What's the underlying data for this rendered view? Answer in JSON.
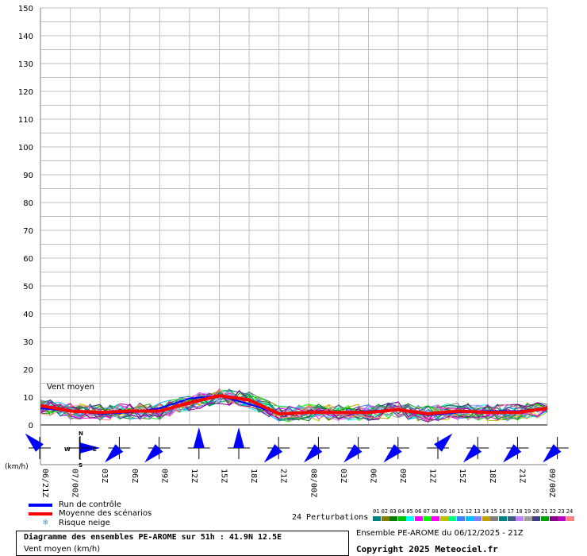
{
  "chart_data": {
    "type": "line",
    "annotation": "Vent moyen",
    "y_unit_label": "(km/h)",
    "ylim": [
      0,
      150
    ],
    "yticks": [
      0,
      10,
      20,
      30,
      40,
      50,
      60,
      70,
      80,
      90,
      100,
      110,
      120,
      130,
      140,
      150
    ],
    "grid": true,
    "x": [
      "06/21Z",
      "07/00Z",
      "03Z",
      "06Z",
      "09Z",
      "12Z",
      "15Z",
      "18Z",
      "21Z",
      "08/00Z",
      "03Z",
      "06Z",
      "09Z",
      "12Z",
      "15Z",
      "18Z",
      "21Z",
      "09/00Z"
    ],
    "series": [
      {
        "name": "Run de contrôle",
        "color": "#0000ff",
        "values": [
          6,
          5,
          4,
          4.5,
          6,
          9.5,
          10.5,
          7.5,
          4,
          4.5,
          4.5,
          5,
          5.5,
          3.5,
          4.5,
          5,
          5,
          6
        ]
      },
      {
        "name": "Moyenne des scénarios",
        "color": "#ff0000",
        "values": [
          7,
          5,
          4.5,
          5,
          5,
          8,
          10.5,
          9,
          4,
          4.5,
          4.5,
          4.5,
          5.5,
          4,
          5,
          4.5,
          4.5,
          6
        ]
      }
    ],
    "wind_rose_directions": [
      "NW",
      "E",
      "SW",
      "SW",
      "N",
      "N",
      "SW",
      "SW",
      "SW",
      "SW",
      "NE",
      "SW",
      "SW",
      "SW"
    ]
  },
  "legend": {
    "control": "Run de contrôle",
    "mean": "Moyenne des scénarios",
    "snow": "Risque neige",
    "snow_icon": "snowflake-icon"
  },
  "compass": {
    "n": "N",
    "s": "S",
    "e": "E",
    "w": "W"
  },
  "perturbations": {
    "label": "24 Perturbations",
    "numbers": [
      "01",
      "02",
      "03",
      "04",
      "05",
      "06",
      "07",
      "08",
      "09",
      "10",
      "11",
      "12",
      "13",
      "14",
      "15",
      "16",
      "17",
      "18",
      "19",
      "20",
      "21",
      "22",
      "23",
      "24"
    ],
    "colors": [
      "#008080",
      "#808000",
      "#008000",
      "#00c000",
      "#00ffff",
      "#ff00ff",
      "#00ff00",
      "#ff00ff",
      "#c0c000",
      "#00ff80",
      "#4080ff",
      "#00c0ff",
      "#8080ff",
      "#c0a000",
      "#808080",
      "#008080",
      "#406080",
      "#c080ff",
      "#a0a0a0",
      "#404080",
      "#00a000",
      "#800080",
      "#c000c0",
      "#ff8080"
    ]
  },
  "footer": {
    "title": "Diagramme des ensembles PE-AROME sur 51h : 41.9N 12.5E",
    "subtitle": "Vent moyen (km/h)",
    "run": "Ensemble PE-AROME du 06/12/2025 - 21Z",
    "copyright": "Copyright 2025 Meteociel.fr"
  }
}
